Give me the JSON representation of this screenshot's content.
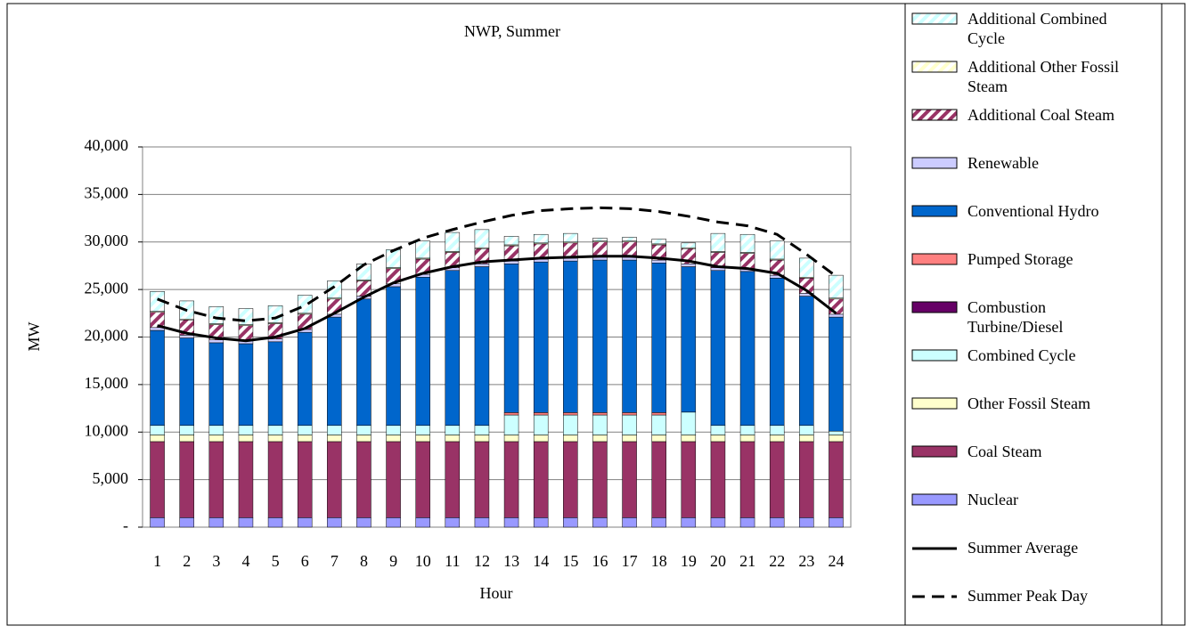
{
  "chart_data": {
    "type": "stacked-bar-line",
    "title": "NWP, Summer",
    "x_label": "Hour",
    "y_label": "MW",
    "categories": [
      "1",
      "2",
      "3",
      "4",
      "5",
      "6",
      "7",
      "8",
      "9",
      "10",
      "11",
      "12",
      "13",
      "14",
      "15",
      "16",
      "17",
      "18",
      "19",
      "20",
      "21",
      "22",
      "23",
      "24"
    ],
    "ylim": [
      0,
      40000
    ],
    "yticks": [
      {
        "value": 0,
        "label": "-"
      },
      {
        "value": 5000,
        "label": "5,000"
      },
      {
        "value": 10000,
        "label": "10,000"
      },
      {
        "value": 15000,
        "label": "15,000"
      },
      {
        "value": 20000,
        "label": "20,000"
      },
      {
        "value": 25000,
        "label": "25,000"
      },
      {
        "value": 30000,
        "label": "30,000"
      },
      {
        "value": 35000,
        "label": "35,000"
      },
      {
        "value": 40000,
        "label": "40,000"
      }
    ],
    "grid": true,
    "series": [
      {
        "name": "Nuclear",
        "color": "#9999ff",
        "hatch": false,
        "values": [
          1000,
          1000,
          1000,
          1000,
          1000,
          1000,
          1000,
          1000,
          1000,
          1000,
          1000,
          1000,
          1000,
          1000,
          1000,
          1000,
          1000,
          1000,
          1000,
          1000,
          1000,
          1000,
          1000,
          1000
        ]
      },
      {
        "name": "Coal Steam",
        "color": "#993366",
        "hatch": false,
        "values": [
          8000,
          8000,
          8000,
          8000,
          8000,
          8000,
          8000,
          8000,
          8000,
          8000,
          8000,
          8000,
          8000,
          8000,
          8000,
          8000,
          8000,
          8000,
          8000,
          8000,
          8000,
          8000,
          8000,
          8000
        ]
      },
      {
        "name": "Other Fossil Steam",
        "color": "#ffffcc",
        "hatch": false,
        "values": [
          700,
          700,
          700,
          700,
          700,
          700,
          700,
          700,
          700,
          700,
          700,
          700,
          700,
          700,
          700,
          700,
          700,
          700,
          700,
          700,
          700,
          700,
          700,
          700
        ]
      },
      {
        "name": "Combined Cycle",
        "color": "#ccffff",
        "hatch": false,
        "values": [
          1000,
          1000,
          1000,
          1000,
          1000,
          1000,
          1000,
          1000,
          1000,
          1000,
          1000,
          1000,
          2100,
          2100,
          2100,
          2100,
          2100,
          2100,
          2400,
          1000,
          1000,
          1000,
          1000,
          400
        ]
      },
      {
        "name": "Combustion Turbine/Diesel",
        "color": "#660066",
        "hatch": false,
        "values": [
          0,
          0,
          0,
          0,
          0,
          0,
          0,
          0,
          0,
          0,
          0,
          0,
          0,
          0,
          0,
          0,
          0,
          0,
          0,
          0,
          0,
          0,
          0,
          0
        ]
      },
      {
        "name": "Pumped Storage",
        "color": "#ff8080",
        "hatch": false,
        "values": [
          0,
          0,
          0,
          0,
          0,
          0,
          0,
          0,
          0,
          0,
          0,
          0,
          250,
          250,
          250,
          250,
          250,
          250,
          0,
          0,
          0,
          0,
          0,
          0
        ]
      },
      {
        "name": "Conventional Hydro",
        "color": "#0066cc",
        "hatch": false,
        "values": [
          10000,
          9200,
          8700,
          8600,
          8800,
          9800,
          11400,
          13300,
          14600,
          15600,
          16300,
          16700,
          15650,
          15850,
          15950,
          16050,
          16050,
          15750,
          15300,
          16300,
          16200,
          15500,
          13600,
          12000
        ]
      },
      {
        "name": "Renewable",
        "color": "#ccccff",
        "hatch": false,
        "values": [
          300,
          300,
          300,
          300,
          300,
          300,
          300,
          300,
          300,
          300,
          300,
          300,
          300,
          300,
          300,
          300,
          300,
          300,
          300,
          300,
          300,
          300,
          300,
          300
        ]
      },
      {
        "name": "Additional Coal Steam",
        "color": "#993366",
        "hatch": true,
        "values": [
          1600,
          1600,
          1600,
          1600,
          1600,
          1600,
          1600,
          1600,
          1600,
          1600,
          1600,
          1600,
          1600,
          1600,
          1600,
          1600,
          1600,
          1600,
          1600,
          1600,
          1600,
          1600,
          1600,
          1600
        ]
      },
      {
        "name": "Additional Other Fossil Steam",
        "color": "#ffffcc",
        "hatch": true,
        "values": [
          100,
          100,
          100,
          100,
          100,
          100,
          100,
          100,
          100,
          100,
          100,
          100,
          100,
          100,
          100,
          100,
          100,
          100,
          100,
          100,
          100,
          100,
          100,
          100
        ]
      },
      {
        "name": "Additional Combined Cycle",
        "color": "#ccffff",
        "hatch": true,
        "values": [
          2100,
          1900,
          1800,
          1700,
          1800,
          1900,
          1800,
          1700,
          1900,
          1800,
          2000,
          1900,
          900,
          900,
          900,
          300,
          400,
          500,
          500,
          1900,
          1900,
          1900,
          2000,
          2400
        ]
      }
    ],
    "lines": [
      {
        "name": "Summer Average",
        "color": "#000000",
        "dashed": false,
        "values": [
          21200,
          20400,
          19900,
          19600,
          20000,
          20900,
          22500,
          24200,
          25700,
          26700,
          27400,
          27900,
          28100,
          28300,
          28400,
          28500,
          28500,
          28300,
          28000,
          27400,
          27200,
          26700,
          24900,
          22500
        ]
      },
      {
        "name": "Summer Peak Day",
        "color": "#000000",
        "dashed": true,
        "values": [
          24000,
          22800,
          22000,
          21700,
          22000,
          23300,
          25300,
          27600,
          29100,
          30400,
          31300,
          32100,
          32800,
          33300,
          33500,
          33600,
          33500,
          33200,
          32700,
          32100,
          31700,
          30800,
          28700,
          26400
        ]
      }
    ]
  }
}
